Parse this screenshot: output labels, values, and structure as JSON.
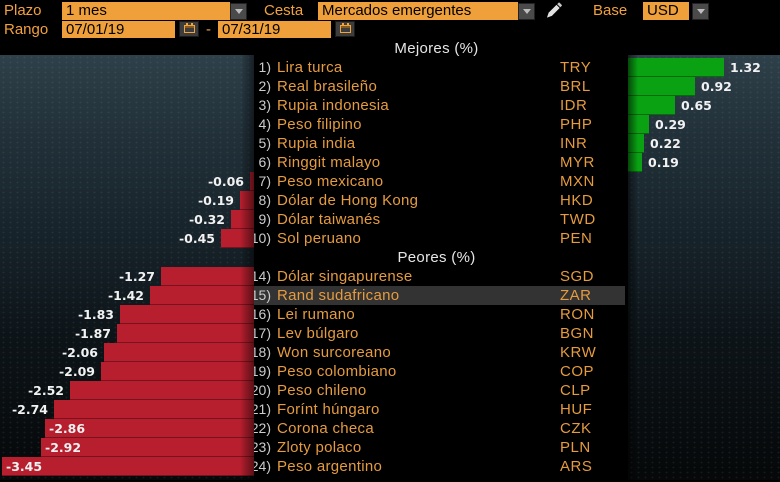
{
  "topbar": {
    "plazo_label": "Plazo",
    "plazo_value": "1 mes",
    "cesta_label": "Cesta",
    "cesta_value": "Mercados emergentes",
    "base_label": "Base",
    "base_value": "USD",
    "rango_label": "Rango",
    "rango_start": "07/01/19",
    "rango_separator": "-",
    "rango_end": "07/31/19"
  },
  "sections": {
    "best_header": "Mejores (%)",
    "worst_header": "Peores (%)"
  },
  "colors": {
    "positive_bar": "#0aa113",
    "negative_bar": "#b71e2e",
    "amber_text": "#e59b3e",
    "field_bg": "#efa03a",
    "highlight_row": "#333333"
  },
  "chart_data": {
    "type": "bar",
    "orientation": "horizontal",
    "unit": "%",
    "period": "1 mes",
    "range": [
      "07/01/19",
      "07/31/19"
    ],
    "base_currency": "USD",
    "highlighted_code": "ZAR",
    "best": [
      {
        "rank": "1)",
        "name": "Lira turca",
        "code": "TRY",
        "value": 1.32
      },
      {
        "rank": "2)",
        "name": "Real brasileño",
        "code": "BRL",
        "value": 0.92
      },
      {
        "rank": "3)",
        "name": "Rupia indonesia",
        "code": "IDR",
        "value": 0.65
      },
      {
        "rank": "4)",
        "name": "Peso filipino",
        "code": "PHP",
        "value": 0.29
      },
      {
        "rank": "5)",
        "name": "Rupia india",
        "code": "INR",
        "value": 0.22
      },
      {
        "rank": "6)",
        "name": "Ringgit malayo",
        "code": "MYR",
        "value": 0.19
      },
      {
        "rank": "7)",
        "name": "Peso mexicano",
        "code": "MXN",
        "value": -0.06
      },
      {
        "rank": "8)",
        "name": "Dólar de Hong Kong",
        "code": "HKD",
        "value": -0.19
      },
      {
        "rank": "9)",
        "name": "Dólar taiwanés",
        "code": "TWD",
        "value": -0.32
      },
      {
        "rank": "10)",
        "name": "Sol peruano",
        "code": "PEN",
        "value": -0.45
      }
    ],
    "worst": [
      {
        "rank": "14)",
        "name": "Dólar singapurense",
        "code": "SGD",
        "value": -1.27
      },
      {
        "rank": "15)",
        "name": "Rand sudafricano",
        "code": "ZAR",
        "value": -1.42
      },
      {
        "rank": "16)",
        "name": "Lei rumano",
        "code": "RON",
        "value": -1.83
      },
      {
        "rank": "17)",
        "name": "Lev búlgaro",
        "code": "BGN",
        "value": -1.87
      },
      {
        "rank": "18)",
        "name": "Won surcoreano",
        "code": "KRW",
        "value": -2.06
      },
      {
        "rank": "19)",
        "name": "Peso colombiano",
        "code": "COP",
        "value": -2.09
      },
      {
        "rank": "20)",
        "name": "Peso chileno",
        "code": "CLP",
        "value": -2.52
      },
      {
        "rank": "21)",
        "name": "Forínt húngaro",
        "code": "HUF",
        "value": -2.74
      },
      {
        "rank": "22)",
        "name": "Corona checa",
        "code": "CZK",
        "value": -2.86
      },
      {
        "rank": "23)",
        "name": "Zloty polaco",
        "code": "PLN",
        "value": -2.92
      },
      {
        "rank": "24)",
        "name": "Peso argentino",
        "code": "ARS",
        "value": -3.45
      }
    ]
  }
}
